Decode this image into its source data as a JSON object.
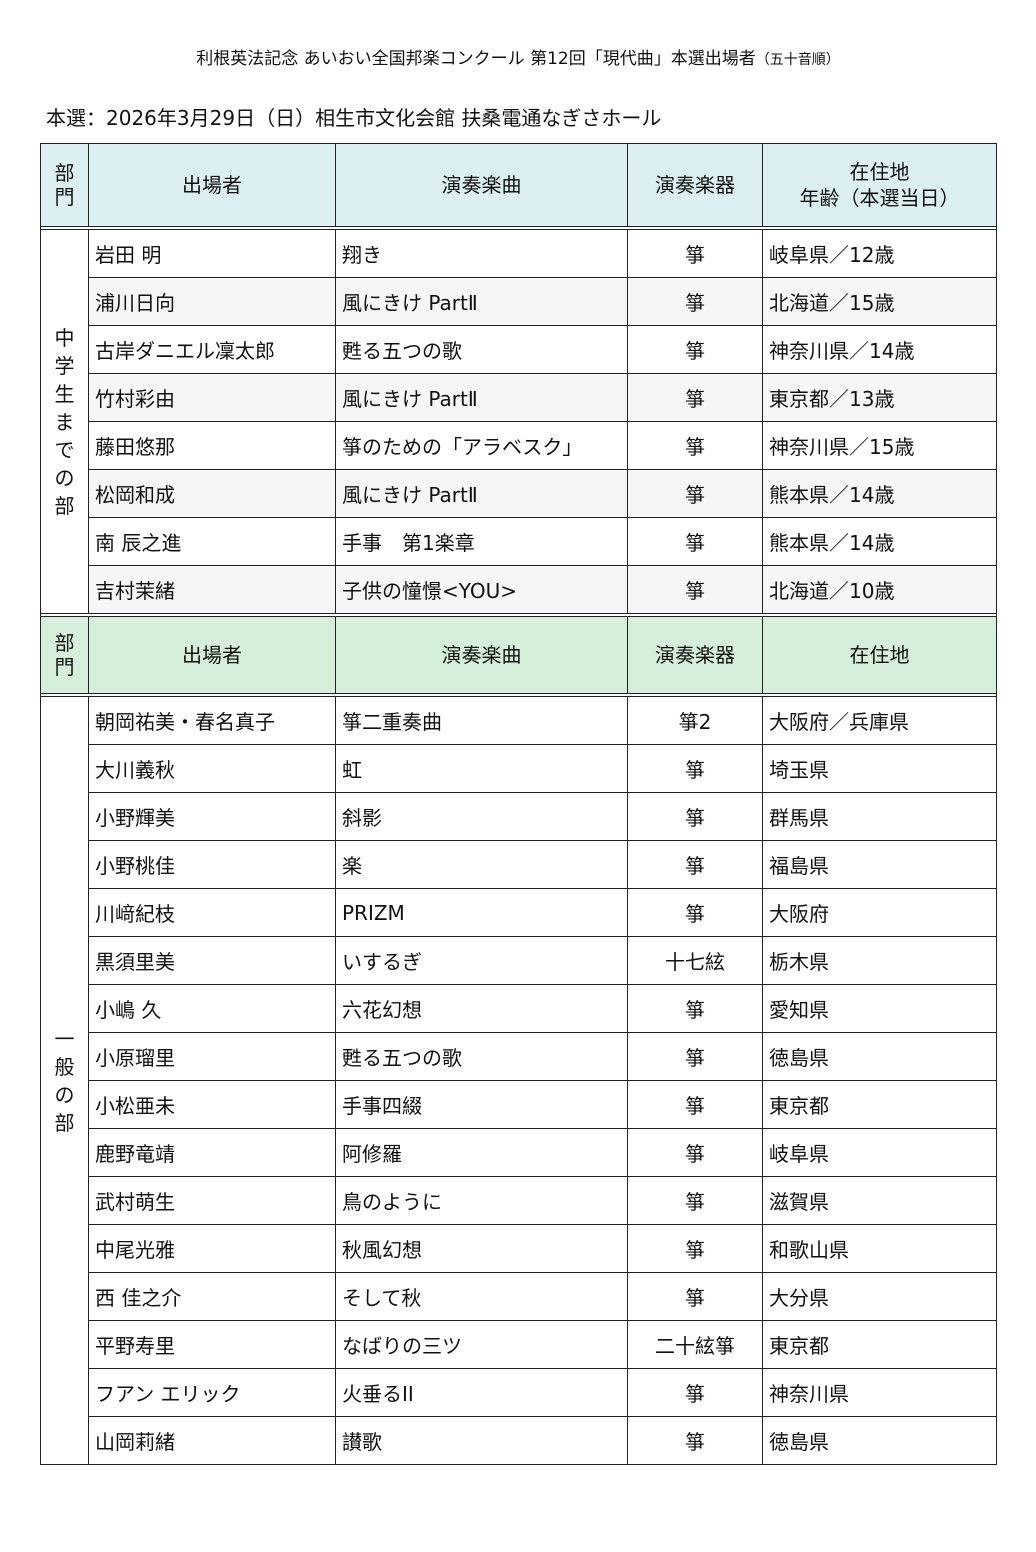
{
  "document": {
    "title": "利根英法記念 あいおい全国邦楽コンクール 第12回「現代曲」本選出場者",
    "title_note": "（五十音順）",
    "subtitle": "本選：2026年3月29日（日）相生市文化会館 扶桑電通なぎさホール"
  },
  "colors": {
    "header1_bg": "#dcf0f4",
    "header2_bg": "#d5efdb",
    "alt_row_bg": "#f6f6f8"
  },
  "sections": [
    {
      "header": {
        "division": "部門",
        "performer": "出場者",
        "piece": "演奏楽曲",
        "instrument": "演奏楽器",
        "residence": "在住地",
        "residence_sub": "年齢（本選当日）"
      },
      "name": "中学生までの部",
      "rows": [
        {
          "performer": "岩田 明",
          "piece": "翔き",
          "instrument": "箏",
          "residence": "岐阜県／12歳"
        },
        {
          "performer": "浦川日向",
          "piece": "風にきけ PartⅡ",
          "instrument": "箏",
          "residence": "北海道／15歳"
        },
        {
          "performer": "古岸ダニエル凜太郎",
          "piece": "甦る五つの歌",
          "instrument": "箏",
          "residence": "神奈川県／14歳"
        },
        {
          "performer": "竹村彩由",
          "piece": "風にきけ PartⅡ",
          "instrument": "箏",
          "residence": "東京都／13歳"
        },
        {
          "performer": "藤田悠那",
          "piece": "箏のための「アラベスク」",
          "instrument": "箏",
          "residence": "神奈川県／15歳"
        },
        {
          "performer": "松岡和成",
          "piece": "風にきけ PartⅡ",
          "instrument": "箏",
          "residence": "熊本県／14歳"
        },
        {
          "performer": "南 辰之進",
          "piece": "手事　第1楽章",
          "instrument": "箏",
          "residence": "熊本県／14歳"
        },
        {
          "performer": "吉村茉緒",
          "piece": "子供の憧憬<YOU>",
          "instrument": "箏",
          "residence": "北海道／10歳"
        }
      ]
    },
    {
      "header": {
        "division": "部門",
        "performer": "出場者",
        "piece": "演奏楽曲",
        "instrument": "演奏楽器",
        "residence": "在住地"
      },
      "name": "一般の部",
      "rows": [
        {
          "performer": "朝岡祐美・春名真子",
          "piece": "箏二重奏曲",
          "instrument": "箏2",
          "residence": "大阪府／兵庫県"
        },
        {
          "performer": "大川義秋",
          "piece": "虹",
          "instrument": "箏",
          "residence": "埼玉県"
        },
        {
          "performer": "小野輝美",
          "piece": "斜影",
          "instrument": "箏",
          "residence": "群馬県"
        },
        {
          "performer": "小野桃佳",
          "piece": "楽",
          "instrument": "箏",
          "residence": "福島県"
        },
        {
          "performer": "川﨑紀枝",
          "piece": "PRIZM",
          "instrument": "箏",
          "residence": "大阪府"
        },
        {
          "performer": "黒須里美",
          "piece": "いするぎ",
          "instrument": "十七絃",
          "residence": "栃木県"
        },
        {
          "performer": "小嶋 久",
          "piece": "六花幻想",
          "instrument": "箏",
          "residence": "愛知県"
        },
        {
          "performer": "小原瑠里",
          "piece": "甦る五つの歌",
          "instrument": "箏",
          "residence": "徳島県"
        },
        {
          "performer": "小松亜未",
          "piece": "手事四綴",
          "instrument": "箏",
          "residence": "東京都"
        },
        {
          "performer": "鹿野竜靖",
          "piece": "阿修羅",
          "instrument": "箏",
          "residence": "岐阜県"
        },
        {
          "performer": "武村萌生",
          "piece": "鳥のように",
          "instrument": "箏",
          "residence": "滋賀県"
        },
        {
          "performer": "中尾光雅",
          "piece": "秋風幻想",
          "instrument": "箏",
          "residence": "和歌山県"
        },
        {
          "performer": "西 佳之介",
          "piece": "そして秋",
          "instrument": "箏",
          "residence": "大分県"
        },
        {
          "performer": "平野寿里",
          "piece": "なばりの三ツ",
          "instrument": "二十絃箏",
          "residence": "東京都"
        },
        {
          "performer": "フアン エリック",
          "piece": "火垂るII",
          "instrument": "箏",
          "residence": "神奈川県"
        },
        {
          "performer": "山岡莉緒",
          "piece": "讃歌",
          "instrument": "箏",
          "residence": "徳島県"
        }
      ]
    }
  ]
}
